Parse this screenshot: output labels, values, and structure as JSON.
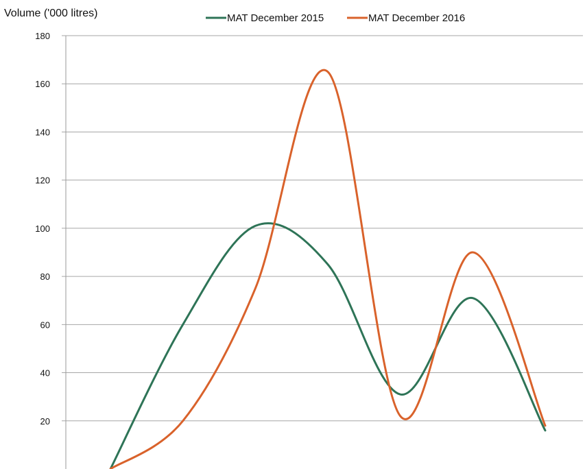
{
  "chart_data": {
    "type": "line",
    "title": "",
    "ylabel": "Volume ('000 litres)",
    "xlabel": "",
    "ylim": [
      0,
      180
    ],
    "yticks": [
      20,
      40,
      60,
      80,
      100,
      120,
      140,
      160,
      180
    ],
    "x": [
      1,
      2,
      3,
      4,
      5,
      6,
      7
    ],
    "grid": true,
    "legend_position": "top",
    "series": [
      {
        "name": "MAT December 2015",
        "color": "#2e7457",
        "values": [
          0,
          60,
          101,
          85,
          31,
          71,
          16
        ]
      },
      {
        "name": "MAT December 2016",
        "color": "#d9622b",
        "values": [
          0,
          20,
          75,
          165,
          22,
          90,
          18
        ]
      }
    ]
  }
}
